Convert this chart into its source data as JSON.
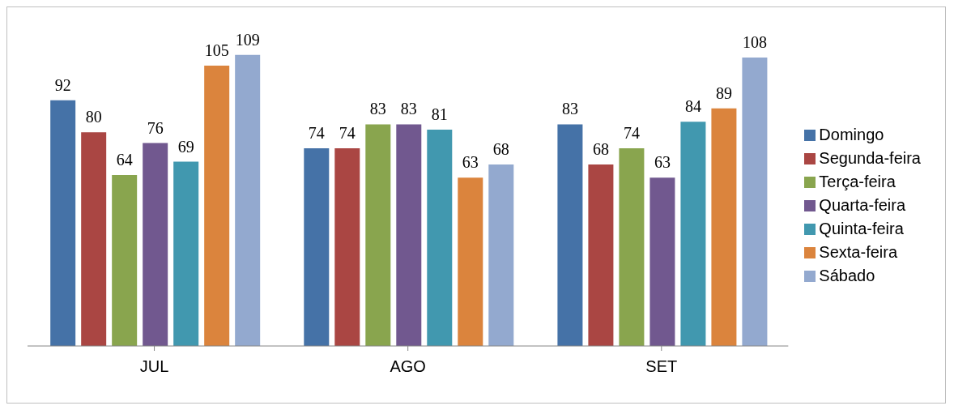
{
  "chart_data": {
    "type": "bar",
    "categories": [
      "JUL",
      "AGO",
      "SET"
    ],
    "series": [
      {
        "name": "Domingo",
        "color": "#4572a7",
        "values": [
          92,
          74,
          83
        ]
      },
      {
        "name": "Segunda-feira",
        "color": "#aa4643",
        "values": [
          80,
          74,
          68
        ]
      },
      {
        "name": "Terça-feira",
        "color": "#89a54e",
        "values": [
          64,
          83,
          74
        ]
      },
      {
        "name": "Quarta-feira",
        "color": "#71588f",
        "values": [
          76,
          83,
          63
        ]
      },
      {
        "name": "Quinta-feira",
        "color": "#4198af",
        "values": [
          69,
          81,
          84
        ]
      },
      {
        "name": "Sexta-feira",
        "color": "#db843d",
        "values": [
          105,
          63,
          89
        ]
      },
      {
        "name": "Sábado",
        "color": "#93a9cf",
        "values": [
          109,
          68,
          108
        ]
      }
    ],
    "data_labels": true,
    "legend": "right",
    "grid": false,
    "tick_labels": "x"
  }
}
